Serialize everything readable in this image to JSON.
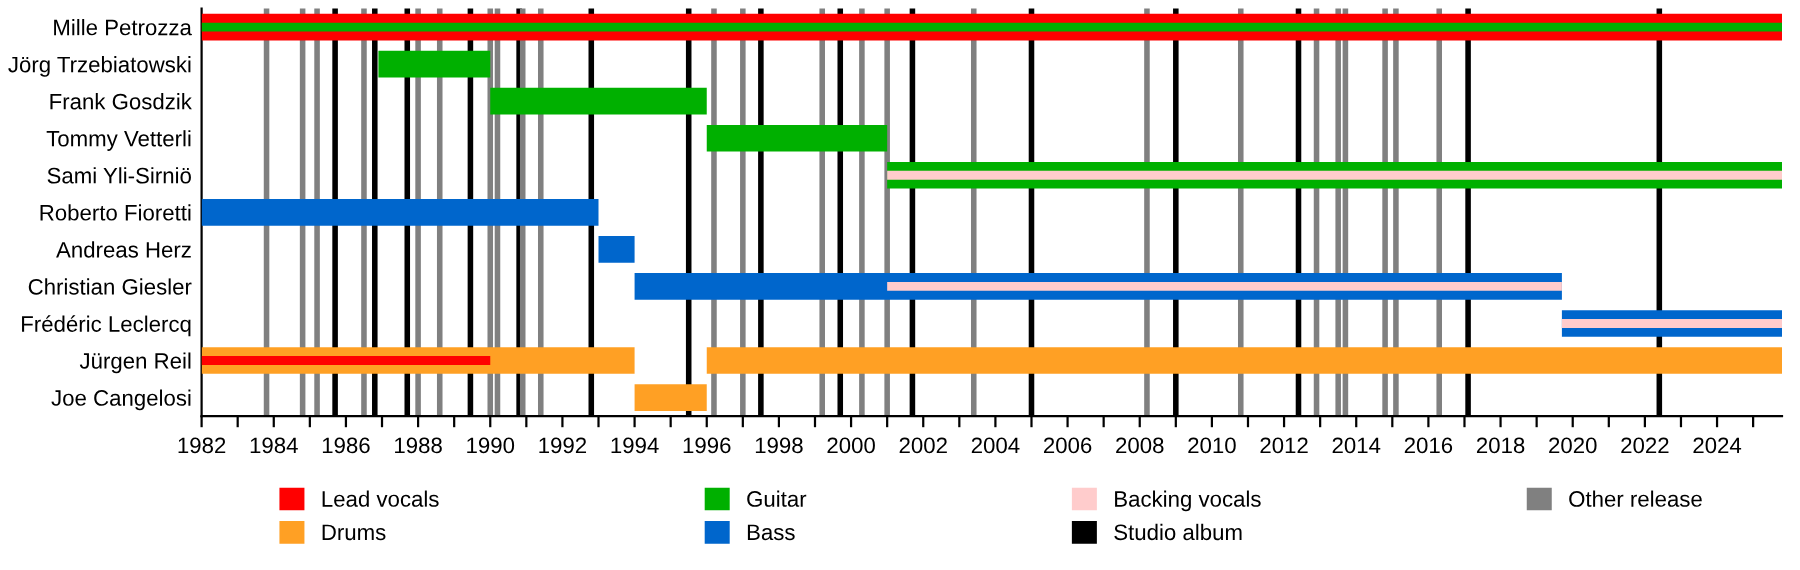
{
  "chart_data": {
    "type": "bar",
    "orientation": "horizontal",
    "categories": [
      "Mille Petrozza",
      "Jörg Trzebiatowski",
      "Frank Gosdzik",
      "Tommy Vetterli",
      "Sami Yli-Sirniö",
      "Roberto Fioretti",
      "Andreas Herz",
      "Christian Giesler",
      "Frédéric Leclercq",
      "Jürgen Reil",
      "Joe Cangelosi"
    ],
    "series": [
      {
        "name": "Lead vocals",
        "color": "#ff0000",
        "base": [
          1982,
          null,
          null,
          null,
          null,
          null,
          null,
          null,
          null,
          1982,
          null
        ],
        "values": [
          43.8,
          null,
          null,
          null,
          null,
          null,
          null,
          null,
          null,
          8,
          null
        ]
      },
      {
        "name": "Drums",
        "color": "#ffa024",
        "base": [
          null,
          null,
          null,
          null,
          null,
          null,
          null,
          null,
          null,
          1982,
          1994
        ],
        "values": [
          null,
          null,
          null,
          null,
          null,
          null,
          null,
          null,
          null,
          12,
          2
        ]
      },
      {
        "color": "#ffa024",
        "base": [
          null,
          null,
          null,
          null,
          null,
          null,
          null,
          null,
          null,
          1996,
          null
        ],
        "values": [
          null,
          null,
          null,
          null,
          null,
          null,
          null,
          null,
          null,
          29.8,
          null
        ]
      },
      {
        "name": "Guitar",
        "color": "#00b000",
        "base": [
          1982,
          1986.9,
          1990,
          1996,
          2001,
          null,
          null,
          null,
          null,
          null,
          null
        ],
        "values": [
          43.8,
          3.1,
          6,
          5,
          24.8,
          null,
          null,
          null,
          null,
          null,
          null
        ]
      },
      {
        "name": "Bass",
        "color": "#0066cc",
        "base": [
          null,
          null,
          null,
          null,
          null,
          1982,
          1993,
          1994,
          2019.7,
          null,
          null
        ],
        "values": [
          null,
          null,
          null,
          null,
          null,
          11,
          1,
          25.7,
          6.1,
          null,
          null
        ]
      },
      {
        "name": "Backing vocals",
        "color": "#ffcccc",
        "base": [
          null,
          null,
          null,
          null,
          2001,
          null,
          null,
          2001,
          2019.7,
          null,
          null
        ],
        "values": [
          null,
          null,
          null,
          null,
          24.8,
          null,
          null,
          18.7,
          6.1,
          null,
          null
        ]
      }
    ],
    "xlim": [
      1982,
      2025.8
    ],
    "xticks": [
      1982,
      {
        "value": 1983,
        "label": null
      },
      1984,
      {
        "value": 1985,
        "label": null
      },
      1986,
      {
        "value": 1987,
        "label": null
      },
      1988,
      {
        "value": 1989,
        "label": null
      },
      1990,
      {
        "value": 1991,
        "label": null
      },
      1992,
      {
        "value": 1993,
        "label": null
      },
      1994,
      {
        "value": 1995,
        "label": null
      },
      1996,
      {
        "value": 1997,
        "label": null
      },
      1998,
      {
        "value": 1999,
        "label": null
      },
      2000,
      {
        "value": 2001,
        "label": null
      },
      2002,
      {
        "value": 2003,
        "label": null
      },
      2004,
      {
        "value": 2005,
        "label": null
      },
      2006,
      {
        "value": 2007,
        "label": null
      },
      2008,
      {
        "value": 2009,
        "label": null
      },
      2010,
      {
        "value": 2011,
        "label": null
      },
      2012,
      {
        "value": 2013,
        "label": null
      },
      2014,
      {
        "value": 2015,
        "label": null
      },
      2016,
      {
        "value": 2017,
        "label": null
      },
      2018,
      {
        "value": 2019,
        "label": null
      },
      2020,
      {
        "value": 2021,
        "label": null
      },
      2022,
      {
        "value": 2023,
        "label": null
      },
      2024,
      {
        "value": 2025,
        "label": null
      }
    ],
    "ref_lines": [
      {
        "axis": "x",
        "value": 1985.7,
        "label": "Studio album",
        "color": "#000000"
      },
      {
        "axis": "x",
        "value": 1986.8,
        "color": "#000000"
      },
      {
        "axis": "x",
        "value": 1987.7,
        "color": "#000000"
      },
      {
        "axis": "x",
        "value": 1989.45,
        "color": "#000000"
      },
      {
        "axis": "x",
        "value": 1990.8,
        "color": "#000000"
      },
      {
        "axis": "x",
        "value": 1992.8,
        "color": "#000000"
      },
      {
        "axis": "x",
        "value": 1995.5,
        "color": "#000000"
      },
      {
        "axis": "x",
        "value": 1997.5,
        "color": "#000000"
      },
      {
        "axis": "x",
        "value": 1999.7,
        "color": "#000000"
      },
      {
        "axis": "x",
        "value": 2001.7,
        "color": "#000000"
      },
      {
        "axis": "x",
        "value": 2005.0,
        "color": "#000000"
      },
      {
        "axis": "x",
        "value": 2009.0,
        "color": "#000000"
      },
      {
        "axis": "x",
        "value": 2012.4,
        "color": "#000000"
      },
      {
        "axis": "x",
        "value": 2017.1,
        "color": "#000000"
      },
      {
        "axis": "x",
        "value": 2022.4,
        "color": "#000000"
      },
      {
        "axis": "x",
        "value": 1983.8,
        "label": "Other release",
        "color": "#808080"
      },
      {
        "axis": "x",
        "value": 1984.8,
        "color": "#808080"
      },
      {
        "axis": "x",
        "value": 1985.2,
        "color": "#808080"
      },
      {
        "axis": "x",
        "value": 1986.5,
        "color": "#808080"
      },
      {
        "axis": "x",
        "value": 1988.0,
        "color": "#808080"
      },
      {
        "axis": "x",
        "value": 1988.6,
        "color": "#808080"
      },
      {
        "axis": "x",
        "value": 1990.0,
        "color": "#808080"
      },
      {
        "axis": "x",
        "value": 1990.2,
        "color": "#808080"
      },
      {
        "axis": "x",
        "value": 1990.9,
        "color": "#808080"
      },
      {
        "axis": "x",
        "value": 1991.4,
        "color": "#808080"
      },
      {
        "axis": "x",
        "value": 1996.2,
        "color": "#808080"
      },
      {
        "axis": "x",
        "value": 1997.0,
        "color": "#808080"
      },
      {
        "axis": "x",
        "value": 1999.2,
        "color": "#808080"
      },
      {
        "axis": "x",
        "value": 2000.3,
        "color": "#808080"
      },
      {
        "axis": "x",
        "value": 2001.0,
        "color": "#808080"
      },
      {
        "axis": "x",
        "value": 2003.4,
        "color": "#808080"
      },
      {
        "axis": "x",
        "value": 2008.2,
        "color": "#808080"
      },
      {
        "axis": "x",
        "value": 2010.8,
        "color": "#808080"
      },
      {
        "axis": "x",
        "value": 2012.9,
        "color": "#808080"
      },
      {
        "axis": "x",
        "value": 2013.5,
        "color": "#808080"
      },
      {
        "axis": "x",
        "value": 2013.7,
        "color": "#808080"
      },
      {
        "axis": "x",
        "value": 2014.8,
        "color": "#808080"
      },
      {
        "axis": "x",
        "value": 2015.1,
        "color": "#808080"
      },
      {
        "axis": "x",
        "value": 2016.3,
        "color": "#808080"
      }
    ],
    "legend": "bottom",
    "grid": false
  }
}
